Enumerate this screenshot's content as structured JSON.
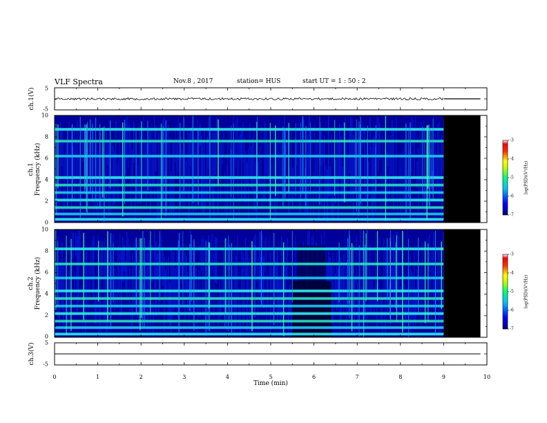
{
  "header": {
    "title": "VLF Spectra",
    "date": "Nov.8  , 2017",
    "station": "station= HUS",
    "start": "start  UT =   1 : 50 : 2"
  },
  "colors": {
    "background": "#ffffff",
    "frame": "#000000",
    "nodata": "#000000",
    "colormap": [
      "#00007a",
      "#0000ff",
      "#00bfff",
      "#00ff80",
      "#b4ff00",
      "#ffff00",
      "#ff6000",
      "#ff0000",
      "#ffffff"
    ]
  },
  "chart_data": [
    {
      "type": "line",
      "ylabel": "ch.1(V)",
      "ylim": [
        -5,
        5
      ],
      "yticks": [
        "5",
        "-5"
      ],
      "xlim": [
        0,
        10
      ],
      "mean_value": 0,
      "data_end_min": 9.0
    },
    {
      "type": "heatmap",
      "ylabel": "ch.1\nFrequency (kHz)",
      "yticks": [
        "0",
        "2",
        "4",
        "6",
        "8",
        "10"
      ],
      "ylim": [
        0,
        10
      ],
      "xlim": [
        0,
        10
      ],
      "data_end_min": 9.0,
      "tone_bands_khz": [
        0.3,
        0.8,
        1.4,
        2.1,
        2.8,
        3.5,
        4.2,
        6.2,
        7.6,
        8.7
      ],
      "colorbar": {
        "ticks": [
          "-3",
          "-4",
          "-5",
          "-6",
          "-7"
        ],
        "label": "log(PSD)(V²/Hz)",
        "range": [
          -7,
          -3
        ]
      }
    },
    {
      "type": "heatmap",
      "ylabel": "ch.2\nFrequency (kHz)",
      "yticks": [
        "0",
        "2",
        "4",
        "6",
        "8",
        "10"
      ],
      "ylim": [
        0,
        10
      ],
      "xlim": [
        0,
        10
      ],
      "data_end_min": 9.0,
      "quiet_interval_min": [
        5.5,
        6.4
      ],
      "tone_bands_khz": [
        0.3,
        0.9,
        1.5,
        2.2,
        2.9,
        3.6,
        4.3,
        5.5,
        6.8,
        8.2
      ],
      "colorbar": {
        "ticks": [
          "-3",
          "-4",
          "-5",
          "-6",
          "-7"
        ],
        "label": "log(PSD)(V²/Hz)",
        "range": [
          -7,
          -3
        ]
      }
    },
    {
      "type": "line",
      "ylabel": "ch.3(V)",
      "ylim": [
        -5,
        5
      ],
      "yticks": [
        "5",
        "-5"
      ],
      "xlim": [
        0,
        10
      ],
      "mean_value": 0
    }
  ],
  "xaxis": {
    "label": "Time  (min)",
    "ticks": [
      "0",
      "1",
      "2",
      "3",
      "4",
      "5",
      "6",
      "7",
      "8",
      "9",
      "10"
    ]
  }
}
